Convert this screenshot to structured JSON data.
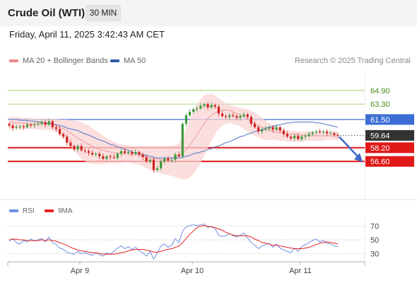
{
  "header": {
    "title": "Crude Oil (WTI)",
    "timeframe": "30 MIN"
  },
  "datetime": "Friday, April 11, 2025 3:42:43 AM CET",
  "legend": {
    "ma20_label": "MA 20 + Bollinger Bands",
    "ma50_label": "MA 50",
    "research": "Research © 2025 Trading Central"
  },
  "rsi_legend": {
    "rsi_label": "RSI",
    "ma9_label": "9MA"
  },
  "colors": {
    "up": "#3c9a3c",
    "down": "#d22222",
    "ma50": "#4d74c2",
    "ma20": "#ef9a9a",
    "band": "#fad4d4",
    "resistance": "#8bc34a",
    "pivot": "#3c6fd6",
    "support": "#e01818",
    "current": "#333333",
    "arrow": "#3f68c7",
    "rsi": "#6d8fe0",
    "rsi_ma": "#e52222"
  },
  "chart_data": [
    {
      "type": "candlestick",
      "title": "Crude Oil (WTI)",
      "timeframe": "30 MIN",
      "x_ticks": [
        "Apr 9",
        "Apr 10",
        "Apr 11"
      ],
      "ylim": [
        53.8,
        67.2
      ],
      "price_levels": [
        {
          "label": "64.90",
          "value": 64.9,
          "kind": "resistance"
        },
        {
          "label": "63.30",
          "value": 63.3,
          "kind": "resistance"
        },
        {
          "label": "61.50",
          "value": 61.5,
          "kind": "pivot"
        },
        {
          "label": "59.64",
          "value": 59.64,
          "kind": "current"
        },
        {
          "label": "58.20",
          "value": 58.2,
          "kind": "support"
        },
        {
          "label": "56.60",
          "value": 56.6,
          "kind": "support"
        }
      ],
      "close": [
        60.8,
        60.5,
        60.6,
        60.7,
        60.6,
        60.9,
        60.8,
        60.9,
        61.0,
        61.2,
        60.9,
        61.3,
        60.6,
        60.4,
        59.8,
        59.5,
        58.8,
        58.4,
        58.0,
        58.4,
        57.9,
        57.8,
        57.6,
        57.4,
        57.5,
        57.2,
        56.9,
        57.2,
        57.1,
        57.0,
        57.5,
        57.8,
        57.6,
        57.7,
        57.5,
        57.7,
        57.4,
        57.1,
        56.6,
        56.8,
        55.6,
        55.8,
        56.6,
        56.9,
        56.7,
        56.8,
        57.4,
        57.2,
        61.0,
        62.0,
        62.4,
        62.7,
        62.8,
        63.1,
        63.3,
        62.9,
        63.2,
        63.0,
        62.2,
        61.9,
        61.8,
        62.0,
        61.9,
        61.7,
        61.9,
        62.1,
        61.8,
        61.0,
        60.6,
        60.1,
        60.3,
        60.4,
        60.6,
        60.3,
        60.6,
        60.2,
        59.8,
        59.5,
        59.3,
        59.6,
        59.2,
        59.5,
        59.6,
        59.8,
        60.0,
        60.1,
        60.0,
        60.1,
        59.9,
        59.9,
        59.7,
        59.64
      ],
      "ma20": [
        61.2,
        61.2,
        61.1,
        61.1,
        61.1,
        61.0,
        61.0,
        61.0,
        61.0,
        61.0,
        61.0,
        61.0,
        60.9,
        60.8,
        60.6,
        60.4,
        60.2,
        59.9,
        59.6,
        59.3,
        59.1,
        58.8,
        58.6,
        58.4,
        58.2,
        58.0,
        57.9,
        57.8,
        57.7,
        57.6,
        57.6,
        57.5,
        57.5,
        57.5,
        57.4,
        57.4,
        57.3,
        57.2,
        57.1,
        57.0,
        56.9,
        56.9,
        56.8,
        56.8,
        56.9,
        57.0,
        57.1,
        57.3,
        57.6,
        58.0,
        58.5,
        59.1,
        59.7,
        60.4,
        61.0,
        61.6,
        62.0,
        62.3,
        62.5,
        62.6,
        62.6,
        62.6,
        62.4,
        62.2,
        62.0,
        61.8,
        61.5,
        61.2,
        61.0,
        60.8,
        60.6,
        60.4,
        60.2,
        60.1,
        60.0,
        59.9,
        59.9,
        59.8,
        59.8,
        59.8,
        59.7,
        59.7,
        59.6,
        59.6,
        59.6,
        59.6,
        59.6,
        59.6,
        59.6,
        59.6,
        59.6,
        59.6
      ],
      "bollinger_upper": [
        61.8,
        61.8,
        61.8,
        61.8,
        61.7,
        61.7,
        61.7,
        61.6,
        61.6,
        61.6,
        61.6,
        61.6,
        61.6,
        61.6,
        61.5,
        61.5,
        61.5,
        61.4,
        61.4,
        61.3,
        61.2,
        61.0,
        60.8,
        60.5,
        60.2,
        59.9,
        59.6,
        59.3,
        59.1,
        58.9,
        58.7,
        58.6,
        58.5,
        58.5,
        58.4,
        58.4,
        58.4,
        58.4,
        58.4,
        58.4,
        58.4,
        58.4,
        58.4,
        58.4,
        58.4,
        58.4,
        58.5,
        58.7,
        59.5,
        60.5,
        61.5,
        62.5,
        63.3,
        63.9,
        64.3,
        64.5,
        64.5,
        64.3,
        64.0,
        63.7,
        63.4,
        63.2,
        63.1,
        63.0,
        62.9,
        62.8,
        62.7,
        62.5,
        62.3,
        62.0,
        61.7,
        61.4,
        61.1,
        60.9,
        60.7,
        60.5,
        60.4,
        60.3,
        60.2,
        60.2,
        60.1,
        60.1,
        60.1,
        60.1,
        60.1,
        60.1,
        60.1,
        60.1,
        60.1,
        60.1,
        60.1,
        60.1
      ],
      "bollinger_lower": [
        60.4,
        60.4,
        60.4,
        60.4,
        60.4,
        60.4,
        60.4,
        60.4,
        60.3,
        60.3,
        60.3,
        60.3,
        60.2,
        60.0,
        59.7,
        59.3,
        58.9,
        58.4,
        57.9,
        57.4,
        56.9,
        56.6,
        56.4,
        56.3,
        56.3,
        56.3,
        56.3,
        56.4,
        56.4,
        56.4,
        56.4,
        56.4,
        56.5,
        56.5,
        56.4,
        56.3,
        56.2,
        56.0,
        55.8,
        55.6,
        55.4,
        55.3,
        55.2,
        55.1,
        55.0,
        54.9,
        54.8,
        54.6,
        54.5,
        54.5,
        54.7,
        55.1,
        55.7,
        56.4,
        57.3,
        58.2,
        59.0,
        59.8,
        60.4,
        60.8,
        61.0,
        61.1,
        61.0,
        60.9,
        60.7,
        60.4,
        60.1,
        59.8,
        59.6,
        59.4,
        59.2,
        59.1,
        59.1,
        59.1,
        59.1,
        59.0,
        59.0,
        58.9,
        58.9,
        58.9,
        58.9,
        58.9,
        59.0,
        59.0,
        59.0,
        59.0,
        59.0,
        59.0,
        59.1,
        59.1,
        59.1,
        59.1
      ],
      "ma50": [
        61.5,
        61.5,
        61.5,
        61.4,
        61.4,
        61.4,
        61.3,
        61.3,
        61.2,
        61.2,
        61.1,
        61.0,
        61.0,
        60.9,
        60.8,
        60.7,
        60.5,
        60.4,
        60.3,
        60.2,
        60.0,
        59.8,
        59.7,
        59.5,
        59.3,
        59.1,
        59.0,
        58.8,
        58.6,
        58.5,
        58.3,
        58.2,
        58.0,
        57.9,
        57.7,
        57.6,
        57.5,
        57.4,
        57.3,
        57.2,
        57.1,
        57.0,
        57.0,
        57.0,
        57.0,
        57.0,
        57.0,
        57.0,
        57.1,
        57.2,
        57.3,
        57.5,
        57.6,
        57.7,
        57.8,
        58.0,
        58.1,
        58.3,
        58.4,
        58.6,
        58.8,
        58.9,
        59.1,
        59.3,
        59.5,
        59.6,
        59.8,
        59.9,
        60.1,
        60.2,
        60.3,
        60.5,
        60.6,
        60.7,
        60.8,
        60.9,
        61.0,
        61.1,
        61.1,
        61.2,
        61.2,
        61.2,
        61.2,
        61.2,
        61.2,
        61.1,
        61.1,
        61.0,
        60.9,
        60.8,
        60.7,
        60.6
      ],
      "forecast": {
        "from": 59.64,
        "to": 56.6
      },
      "grid": false
    },
    {
      "type": "line",
      "title": "RSI",
      "x_ticks": [
        "Apr 9",
        "Apr 10",
        "Apr 11"
      ],
      "y_ticks": [
        30,
        50,
        70
      ],
      "ylim": [
        22,
        78
      ],
      "series": [
        {
          "name": "RSI",
          "values": [
            48,
            52,
            46,
            44,
            49,
            47,
            51,
            48,
            50,
            52,
            47,
            54,
            46,
            43,
            38,
            36,
            32,
            30,
            29,
            33,
            30,
            31,
            29,
            27,
            31,
            28,
            26,
            31,
            29,
            33,
            38,
            41,
            37,
            40,
            36,
            39,
            34,
            31,
            26,
            33,
            22,
            30,
            41,
            44,
            39,
            42,
            52,
            46,
            63,
            69,
            71,
            72,
            71,
            72,
            73,
            68,
            70,
            66,
            57,
            55,
            56,
            59,
            56,
            54,
            57,
            60,
            53,
            46,
            42,
            37,
            41,
            43,
            45,
            39,
            44,
            38,
            35,
            33,
            31,
            38,
            33,
            40,
            43,
            46,
            49,
            51,
            47,
            49,
            45,
            44,
            41,
            40
          ]
        },
        {
          "name": "9MA",
          "values": [
            50,
            51,
            51,
            50,
            50,
            49,
            49,
            49,
            49,
            50,
            49,
            50,
            49,
            48,
            46,
            44,
            42,
            39,
            37,
            35,
            34,
            33,
            32,
            31,
            31,
            30,
            29,
            29,
            29,
            29,
            30,
            31,
            32,
            34,
            35,
            36,
            36,
            36,
            35,
            34,
            32,
            32,
            33,
            35,
            36,
            37,
            39,
            41,
            46,
            52,
            58,
            63,
            68,
            70,
            71,
            70,
            69,
            68,
            66,
            64,
            61,
            59,
            57,
            56,
            56,
            56,
            56,
            54,
            51,
            49,
            46,
            45,
            44,
            42,
            42,
            41,
            40,
            39,
            38,
            37,
            37,
            37,
            38,
            39,
            41,
            43,
            45,
            46,
            47,
            46,
            45,
            44
          ]
        }
      ]
    }
  ]
}
